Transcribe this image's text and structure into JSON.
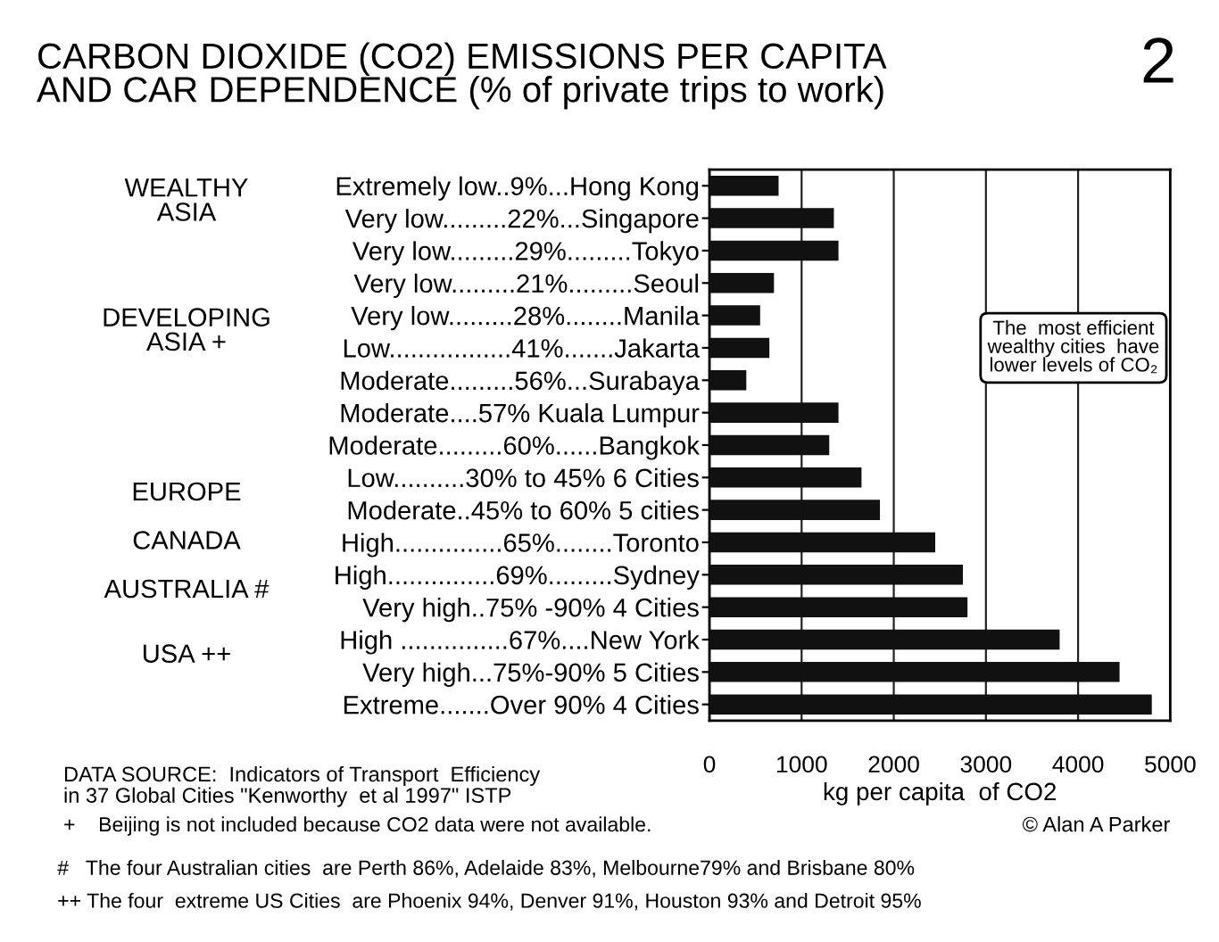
{
  "chart_data": {
    "type": "bar",
    "orientation": "horizontal",
    "title": "CARBON DIOXIDE (CO2) EMISSIONS PER CAPITA\nAND CAR DEPENDENCE (% of private trips to work)",
    "xlabel": "kg per capita  of CO2",
    "categories": [
      "Extremely low..9%...Hong Kong",
      "Very low.........22%...Singapore",
      "Very low.........29%.........Tokyo",
      "Very low.........21%.........Seoul",
      "Very low.........28%........Manila",
      "Low.................41%.......Jakarta",
      "Moderate.........56%...Surabaya",
      "Moderate....57% Kuala Lumpur",
      "Moderate.........60%......Bangkok",
      "Low..........30% to 45% 6 Cities",
      "Moderate..45% to 60% 5 cities",
      "High...............65%........Toronto",
      "High...............69%.........Sydney",
      "Very high..75% -90% 4 Cities",
      "High ...............67%....New York",
      "Very high...75%-90% 5 Cities",
      "Extreme.......Over 90% 4 Cities"
    ],
    "values": [
      750,
      1350,
      1400,
      700,
      550,
      650,
      400,
      1400,
      1300,
      1650,
      1850,
      2450,
      2750,
      2800,
      3800,
      4450,
      4800
    ],
    "color": "#111111",
    "xlim": [
      0,
      5000
    ],
    "xticks": [
      0,
      1000,
      2000,
      3000,
      4000,
      5000
    ],
    "grid": "x",
    "annotations": [
      "WEALTHY\nASIA",
      "DEVELOPING\nASIA +",
      "EUROPE",
      "CANADA",
      "AUSTRALIA #",
      "USA ++",
      "The  most efficient\nwealthy cities  have\nlower levels of CO₂",
      "DATA SOURCE:  Indicators of Transport  Efficiency\nin 37 Global Cities \"Kenworthy  et al 1997\" ISTP",
      "+    Beijing is not included because CO2 data were not available.",
      "© Alan A Parker",
      "#   The four Australian cities  are Perth 86%, Adelaide 83%, Melbourne79% and Brisbane 80%",
      "++ The four  extreme US Cities  are Phoenix 94%, Denver 91%, Houston 93% and Detroit 95%",
      "2"
    ]
  }
}
